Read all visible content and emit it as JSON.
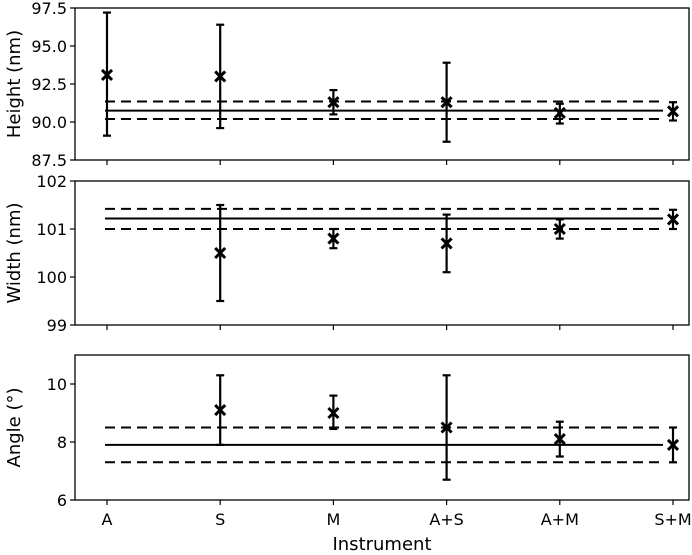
{
  "chart_data": [
    {
      "type": "scatter",
      "ylabel": "Height (nm)",
      "categories": [
        "A",
        "S",
        "M",
        "A+S",
        "A+M",
        "S+M"
      ],
      "ylim": [
        87.5,
        97.5
      ],
      "yticks": [
        "97.5",
        "95.0",
        "92.5",
        "90.0",
        "87.5"
      ],
      "ytick_values": [
        97.5,
        95.0,
        92.5,
        90.0,
        87.5
      ],
      "values": [
        93.1,
        93.0,
        91.3,
        91.3,
        90.6,
        90.7
      ],
      "err_low": [
        89.1,
        89.6,
        90.5,
        88.7,
        89.9,
        90.1
      ],
      "err_high": [
        97.2,
        96.4,
        92.1,
        93.9,
        91.2,
        91.3
      ],
      "reference_mean": 90.75,
      "reference_band": [
        90.2,
        91.35
      ]
    },
    {
      "type": "scatter",
      "ylabel": "Width (nm)",
      "categories": [
        "A",
        "S",
        "M",
        "A+S",
        "A+M",
        "S+M"
      ],
      "ylim": [
        99,
        102
      ],
      "yticks": [
        "102",
        "101",
        "100",
        "99"
      ],
      "ytick_values": [
        102,
        101,
        100,
        99
      ],
      "values": [
        null,
        100.5,
        100.8,
        100.7,
        101.0,
        101.2
      ],
      "err_low": [
        null,
        99.5,
        100.6,
        100.1,
        100.8,
        101.0
      ],
      "err_high": [
        null,
        101.5,
        101.0,
        101.3,
        101.2,
        101.4
      ],
      "reference_mean": 101.22,
      "reference_band": [
        101.0,
        101.42
      ]
    },
    {
      "type": "scatter",
      "ylabel": "Angle (°)",
      "xlabel": "Instrument",
      "categories": [
        "A",
        "S",
        "M",
        "A+S",
        "A+M",
        "S+M"
      ],
      "ylim": [
        6,
        11
      ],
      "yticks": [
        "10",
        "8",
        "6"
      ],
      "ytick_values": [
        10,
        8,
        6
      ],
      "values": [
        null,
        9.1,
        9.0,
        8.5,
        8.1,
        7.9
      ],
      "err_low": [
        null,
        7.9,
        8.45,
        6.7,
        7.5,
        7.3
      ],
      "err_high": [
        null,
        10.3,
        9.6,
        10.3,
        8.7,
        8.5
      ],
      "reference_mean": 7.9,
      "reference_band": [
        7.3,
        8.5
      ]
    }
  ]
}
